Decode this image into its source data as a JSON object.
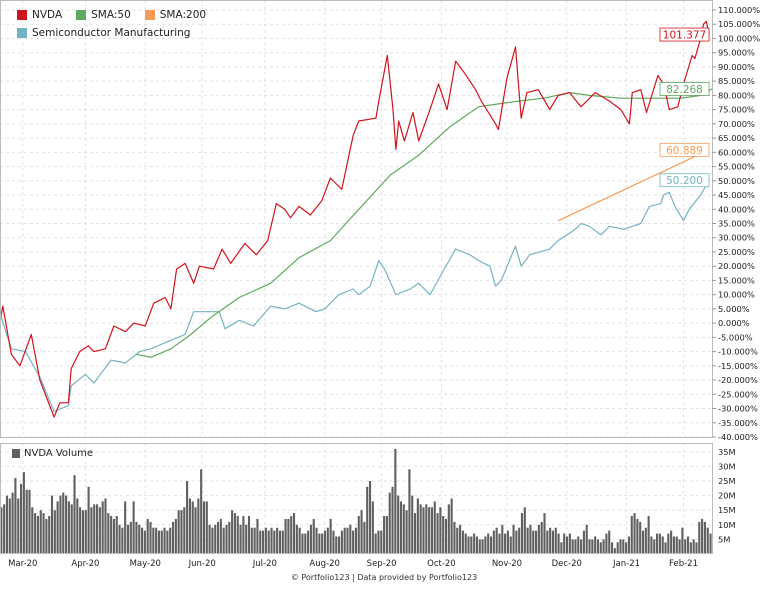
{
  "legend": {
    "items": [
      {
        "label": "NVDA",
        "color": "#d0141c"
      },
      {
        "label": "SMA:50",
        "color": "#5fa85f"
      },
      {
        "label": "SMA:200",
        "color": "#f79a55"
      },
      {
        "label": "Semiconductor Manufacturing",
        "color": "#74b4c2"
      }
    ],
    "volume_label": "NVDA Volume",
    "volume_color": "#606060"
  },
  "footer": "© Portfolio123 | Data provided by Portfolio123",
  "chart_data": {
    "type": "line",
    "x_unit": "trading day index",
    "xlim": [
      0,
      250
    ],
    "ylim": [
      -40,
      110
    ],
    "y_ticks": [
      110,
      105,
      100,
      95,
      90,
      85,
      80,
      75,
      70,
      65,
      60,
      55,
      50,
      45,
      40,
      35,
      30,
      25,
      20,
      15,
      10,
      5,
      0,
      -5,
      -10,
      -15,
      -20,
      -25,
      -30,
      -35,
      -40
    ],
    "y_tick_format": "{v}.000%",
    "x_ticks": [
      {
        "x": 8,
        "label": "Mar-20"
      },
      {
        "x": 30,
        "label": "Apr-20"
      },
      {
        "x": 51,
        "label": "May-20"
      },
      {
        "x": 71,
        "label": "Jun-20"
      },
      {
        "x": 93,
        "label": "Jul-20"
      },
      {
        "x": 114,
        "label": "Aug-20"
      },
      {
        "x": 134,
        "label": "Sep-20"
      },
      {
        "x": 155,
        "label": "Oct-20"
      },
      {
        "x": 178,
        "label": "Nov-20"
      },
      {
        "x": 199,
        "label": "Dec-20"
      },
      {
        "x": 220,
        "label": "Jan-21"
      },
      {
        "x": 240,
        "label": "Feb-21"
      }
    ],
    "grid": true,
    "legend_position": "top-left",
    "series": [
      {
        "name": "NVDA",
        "color": "#d0141c",
        "last_label": "101.377",
        "points": [
          [
            0,
            1
          ],
          [
            1,
            6
          ],
          [
            4,
            -11
          ],
          [
            7,
            -15
          ],
          [
            11,
            -4
          ],
          [
            14,
            -20
          ],
          [
            19,
            -33
          ],
          [
            21,
            -28
          ],
          [
            24,
            -28
          ],
          [
            25,
            -16
          ],
          [
            28,
            -10
          ],
          [
            31,
            -8
          ],
          [
            33,
            -10
          ],
          [
            37,
            -9
          ],
          [
            40,
            -1
          ],
          [
            44,
            -3
          ],
          [
            47,
            0
          ],
          [
            51,
            -1
          ],
          [
            54,
            7
          ],
          [
            58,
            9
          ],
          [
            60,
            5
          ],
          [
            62,
            19
          ],
          [
            65,
            21
          ],
          [
            68,
            14
          ],
          [
            70,
            20
          ],
          [
            75,
            19
          ],
          [
            78,
            26
          ],
          [
            81,
            21
          ],
          [
            86,
            28
          ],
          [
            90,
            24
          ],
          [
            94,
            29
          ],
          [
            97,
            42
          ],
          [
            100,
            40
          ],
          [
            102,
            37
          ],
          [
            105,
            41
          ],
          [
            109,
            38
          ],
          [
            113,
            43
          ],
          [
            116,
            51
          ],
          [
            119,
            48
          ],
          [
            120,
            47
          ],
          [
            124,
            66
          ],
          [
            126,
            71
          ],
          [
            132,
            72
          ],
          [
            133,
            78
          ],
          [
            136,
            94
          ],
          [
            138,
            75
          ],
          [
            139,
            61
          ],
          [
            140,
            71
          ],
          [
            142,
            64
          ],
          [
            145,
            74
          ],
          [
            147,
            64
          ],
          [
            151,
            75
          ],
          [
            154,
            84
          ],
          [
            157,
            75
          ],
          [
            160,
            92
          ],
          [
            163,
            88
          ],
          [
            167,
            82
          ],
          [
            169,
            78
          ],
          [
            174,
            70
          ],
          [
            175,
            68
          ],
          [
            178,
            86
          ],
          [
            181,
            97
          ],
          [
            183,
            72
          ],
          [
            185,
            81
          ],
          [
            189,
            82
          ],
          [
            193,
            75
          ],
          [
            196,
            80
          ],
          [
            200,
            81
          ],
          [
            204,
            76
          ],
          [
            209,
            81
          ],
          [
            214,
            78
          ],
          [
            218,
            75
          ],
          [
            221,
            70
          ],
          [
            222,
            81
          ],
          [
            225,
            82
          ],
          [
            227,
            74
          ],
          [
            231,
            87
          ],
          [
            233,
            84
          ],
          [
            235,
            75
          ],
          [
            238,
            76
          ],
          [
            240,
            84
          ],
          [
            243,
            94
          ],
          [
            244,
            93
          ],
          [
            246,
            100
          ],
          [
            247,
            105
          ],
          [
            248,
            106
          ],
          [
            249,
            101.377
          ]
        ]
      },
      {
        "name": "SMA:50",
        "color": "#5fa85f",
        "last_label": "82.268",
        "points": [
          [
            48,
            -11
          ],
          [
            53,
            -12
          ],
          [
            60,
            -9
          ],
          [
            67,
            -4
          ],
          [
            74,
            2
          ],
          [
            84,
            9
          ],
          [
            95,
            14
          ],
          [
            105,
            23
          ],
          [
            116,
            29
          ],
          [
            126,
            40
          ],
          [
            137,
            52
          ],
          [
            147,
            59
          ],
          [
            158,
            69
          ],
          [
            168,
            76
          ],
          [
            175,
            77
          ],
          [
            182,
            78
          ],
          [
            191,
            79
          ],
          [
            200,
            81
          ],
          [
            207,
            80
          ],
          [
            218,
            79
          ],
          [
            228,
            79
          ],
          [
            239,
            79
          ],
          [
            246,
            80
          ],
          [
            250,
            82.268
          ]
        ]
      },
      {
        "name": "SMA:200",
        "color": "#f79a55",
        "last_label": "60.889",
        "points": [
          [
            196,
            36
          ],
          [
            249,
            60.889
          ]
        ]
      },
      {
        "name": "Semiconductor Manufacturing",
        "color": "#74b4c2",
        "last_label": "50.200",
        "points": [
          [
            0,
            3.5
          ],
          [
            4,
            -9
          ],
          [
            9,
            -10
          ],
          [
            14,
            -19
          ],
          [
            19,
            -31
          ],
          [
            24,
            -29
          ],
          [
            25,
            -22
          ],
          [
            30,
            -18
          ],
          [
            33,
            -21
          ],
          [
            39,
            -13
          ],
          [
            44,
            -14
          ],
          [
            49,
            -10
          ],
          [
            53,
            -9
          ],
          [
            60,
            -6
          ],
          [
            65,
            -4
          ],
          [
            68,
            4
          ],
          [
            77,
            4
          ],
          [
            79,
            -2
          ],
          [
            84,
            1
          ],
          [
            89,
            -1
          ],
          [
            95,
            6
          ],
          [
            100,
            5
          ],
          [
            105,
            7
          ],
          [
            111,
            4
          ],
          [
            114,
            5
          ],
          [
            119,
            10
          ],
          [
            124,
            12
          ],
          [
            126,
            10
          ],
          [
            130,
            13
          ],
          [
            133,
            22
          ],
          [
            135,
            19
          ],
          [
            139,
            10
          ],
          [
            144,
            12
          ],
          [
            147,
            14
          ],
          [
            151,
            10
          ],
          [
            156,
            19
          ],
          [
            160,
            26
          ],
          [
            165,
            24
          ],
          [
            168,
            22
          ],
          [
            172,
            20
          ],
          [
            174,
            13
          ],
          [
            176,
            15
          ],
          [
            181,
            27
          ],
          [
            183,
            20
          ],
          [
            186,
            24
          ],
          [
            193,
            26
          ],
          [
            196,
            29
          ],
          [
            202,
            33
          ],
          [
            204,
            35
          ],
          [
            207,
            34
          ],
          [
            211,
            31
          ],
          [
            214,
            34
          ],
          [
            219,
            33
          ],
          [
            225,
            35
          ],
          [
            228,
            41
          ],
          [
            232,
            42
          ],
          [
            233,
            45
          ],
          [
            235,
            46
          ],
          [
            237,
            41
          ],
          [
            240,
            36
          ],
          [
            242,
            40
          ],
          [
            246,
            45
          ],
          [
            249,
            50.2
          ]
        ]
      }
    ],
    "volume": {
      "name": "NVDA Volume",
      "unit": "M",
      "ylim": [
        0,
        38
      ],
      "y_ticks": [
        5,
        10,
        15,
        20,
        25,
        30,
        35
      ],
      "y_tick_format": "{v}M",
      "values": [
        16,
        17,
        20,
        19,
        21,
        26,
        19,
        24,
        28,
        22,
        22,
        16,
        14,
        13,
        15,
        14,
        12,
        13,
        20,
        15,
        18,
        20,
        21,
        20,
        18,
        17,
        27,
        19,
        16,
        15,
        15,
        23,
        16,
        17,
        17,
        16,
        18,
        19,
        14,
        13,
        12,
        13,
        10,
        9,
        18,
        10,
        11,
        18,
        11,
        10,
        9,
        8,
        12,
        11,
        9,
        9,
        8,
        8,
        9,
        8,
        9,
        11,
        12,
        15,
        15,
        16,
        25,
        19,
        18,
        16,
        19,
        29,
        18,
        18,
        10,
        9,
        10,
        11,
        12,
        9,
        10,
        11,
        15,
        14,
        13,
        10,
        13,
        10,
        13,
        9,
        9,
        12,
        8,
        8,
        9,
        8,
        9,
        8,
        9,
        8,
        8,
        12,
        12,
        13,
        14,
        10,
        9,
        7,
        7,
        8,
        10,
        12,
        9,
        7,
        7,
        8,
        9,
        12,
        8,
        6,
        6,
        8,
        9,
        9,
        10,
        8,
        9,
        13,
        15,
        11,
        23,
        25,
        18,
        7,
        8,
        8,
        13,
        13,
        21,
        23,
        36,
        20,
        18,
        17,
        15,
        29,
        20,
        14,
        19,
        17,
        16,
        17,
        16,
        16,
        18,
        14,
        16,
        13,
        12,
        17,
        19,
        11,
        9,
        10,
        8,
        7,
        6,
        6,
        7,
        6,
        5,
        5,
        6,
        7,
        6,
        8,
        9,
        7,
        10,
        7,
        8,
        6,
        10,
        8,
        9,
        14,
        16,
        9,
        10,
        8,
        8,
        10,
        11,
        14,
        8,
        9,
        8,
        9,
        7,
        4,
        7,
        6,
        7,
        5,
        5,
        6,
        5,
        8,
        10,
        5,
        5,
        6,
        5,
        4,
        5,
        7,
        8,
        4,
        2,
        4,
        5,
        5,
        4,
        6,
        13,
        14,
        12,
        11,
        8,
        9,
        13,
        6,
        5,
        7,
        7,
        6,
        4,
        7,
        8,
        6,
        6,
        5,
        9,
        5,
        6,
        4,
        5,
        4,
        11,
        12,
        11,
        9,
        7
      ]
    }
  }
}
